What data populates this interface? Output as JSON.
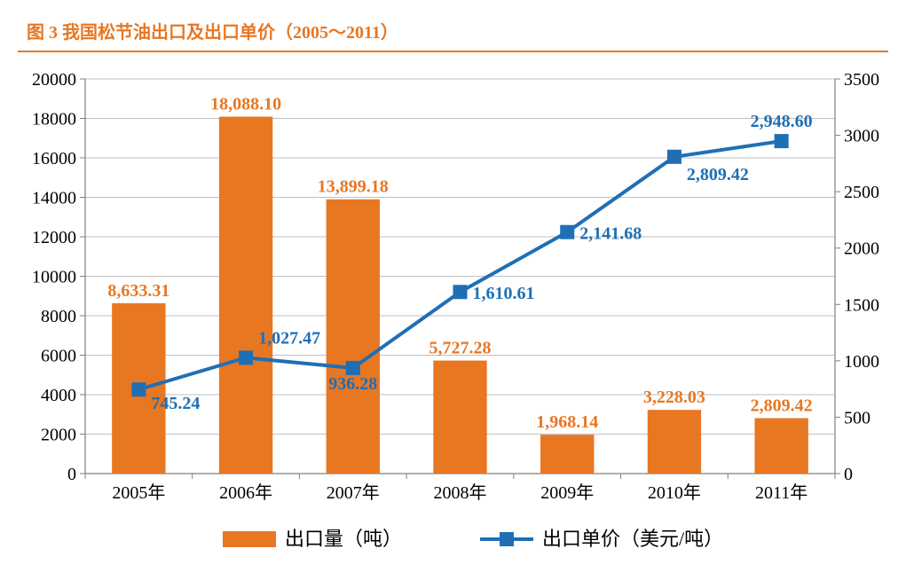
{
  "title": "图 3    我国松节油出口及出口单价（2005～2011）",
  "chart": {
    "type": "bar+line-dual-axis",
    "categories": [
      "2005年",
      "2006年",
      "2007年",
      "2008年",
      "2009年",
      "2010年",
      "2011年"
    ],
    "bar_series": {
      "name": "出口量（吨）",
      "values": [
        8633.31,
        18088.1,
        13899.18,
        5727.28,
        1968.14,
        3228.03,
        2809.42
      ],
      "labels": [
        "8,633.31",
        "18,088.10",
        "13,899.18",
        "5,727.28",
        "1,968.14",
        "3,228.03",
        "2,809.42"
      ],
      "color": "#e87722",
      "bar_width_ratio": 0.5
    },
    "line_series": {
      "name": "出口单价（美元/吨）",
      "values": [
        745.24,
        1027.47,
        936.28,
        1610.61,
        2141.68,
        2809.42,
        2948.6
      ],
      "labels": [
        "745.24",
        "1,027.47",
        "936.28",
        "1,610.61",
        "2,141.68",
        "2,809.42",
        "2,948.60"
      ],
      "color": "#1f6fb5",
      "marker_color": "#1f6fb5",
      "marker_size": 16,
      "line_width": 4
    },
    "y_left": {
      "min": 0,
      "max": 20000,
      "step": 2000
    },
    "y_right": {
      "min": 0,
      "max": 3500,
      "step": 500
    },
    "plot": {
      "background": "#ffffff",
      "gridline_color": "#bfbfbf",
      "axis_color": "#808080",
      "tick_color": "#808080"
    },
    "fonts": {
      "title_size": 20,
      "tick_size": 20,
      "label_size": 20,
      "legend_size": 22
    },
    "legend": {
      "bar_label": "出口量（吨）",
      "line_label": "出口单价（美元/吨）"
    },
    "label_positions": {
      "line_anchors": [
        "start",
        "start",
        "middle",
        "start",
        "start",
        "start",
        "middle"
      ],
      "line_dy": [
        22,
        -16,
        24,
        8,
        8,
        26,
        -16
      ]
    }
  }
}
